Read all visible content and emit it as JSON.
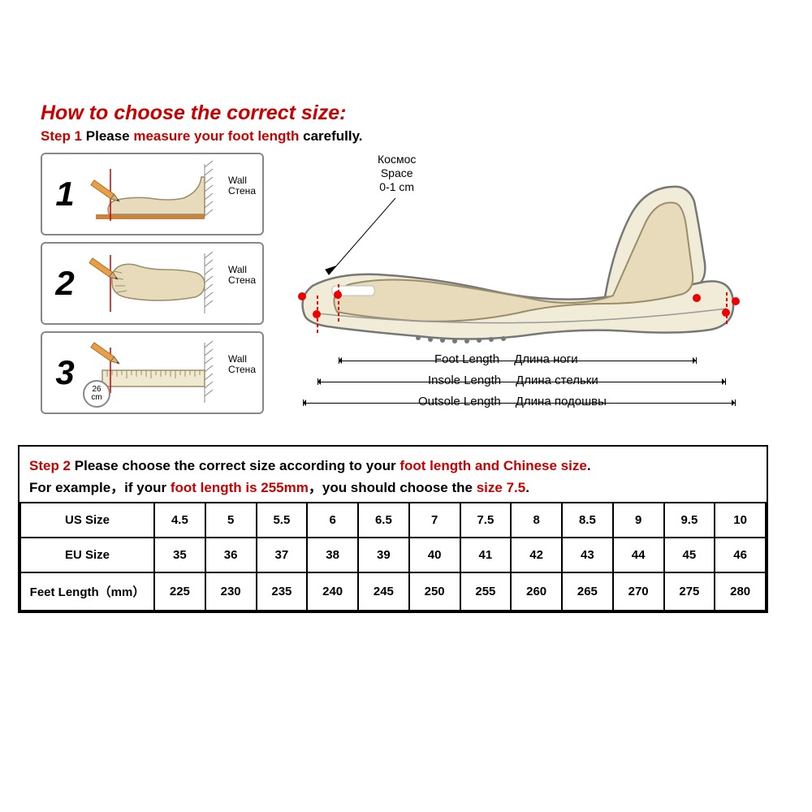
{
  "title": "How to choose the correct size:",
  "step1": {
    "label": "Step 1",
    "before": " Please ",
    "highlight": "measure your foot length",
    "after": " carefully."
  },
  "panels": {
    "wall_en": "Wall",
    "wall_ru": "Стена",
    "cm_num": "26",
    "cm_unit": "cm"
  },
  "shoe": {
    "space_ru": "Космос",
    "space_en": "Space",
    "space_val": "0-1 cm",
    "foot_en": "Foot Length",
    "foot_ru": "Длина ноги",
    "insole_en": "Insole Length",
    "insole_ru": "Длина стельки",
    "outsole_en": "Outsole Length",
    "outsole_ru": "Длина подошвы"
  },
  "step2": {
    "label": "Step 2",
    "line1_a": " Please choose the correct size according to your ",
    "line1_b": "foot length and Chinese size",
    "line1_c": ".",
    "line2_a": "For example，if your ",
    "line2_b": "foot length is 255mm",
    "line2_c": "，you should choose the ",
    "line2_d": "size 7.5",
    "line2_e": "."
  },
  "table": {
    "rows": [
      {
        "hdr": "US Size",
        "cells": [
          "4.5",
          "5",
          "5.5",
          "6",
          "6.5",
          "7",
          "7.5",
          "8",
          "8.5",
          "9",
          "9.5",
          "10"
        ]
      },
      {
        "hdr": "EU Size",
        "cells": [
          "35",
          "36",
          "37",
          "38",
          "39",
          "40",
          "41",
          "42",
          "43",
          "44",
          "45",
          "46"
        ]
      },
      {
        "hdr": "Feet Length（mm）",
        "cells": [
          "225",
          "230",
          "235",
          "240",
          "245",
          "250",
          "255",
          "260",
          "265",
          "270",
          "275",
          "280"
        ]
      }
    ]
  },
  "colors": {
    "accent_red": "#c80000",
    "foot_fill": "#e8dbbc",
    "foot_stroke": "#9a8d6a",
    "shoe_fill": "#f0ecd8",
    "pencil_body": "#e7a04a",
    "pencil_tip": "#d9b07a",
    "ruler_fill": "#efe9cf"
  }
}
